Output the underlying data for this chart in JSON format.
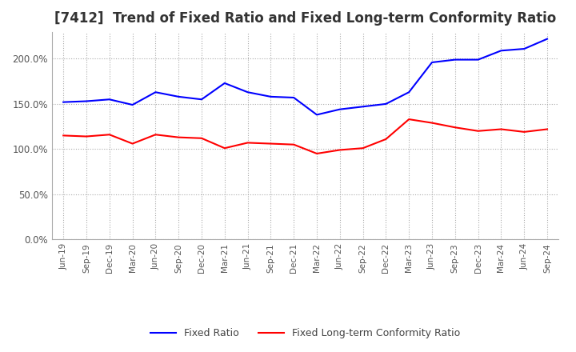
{
  "title": "[7412]  Trend of Fixed Ratio and Fixed Long-term Conformity Ratio",
  "x_labels": [
    "Jun-19",
    "Sep-19",
    "Dec-19",
    "Mar-20",
    "Jun-20",
    "Sep-20",
    "Dec-20",
    "Mar-21",
    "Jun-21",
    "Sep-21",
    "Dec-21",
    "Mar-22",
    "Jun-22",
    "Sep-22",
    "Dec-22",
    "Mar-23",
    "Jun-23",
    "Sep-23",
    "Dec-23",
    "Mar-24",
    "Jun-24",
    "Sep-24"
  ],
  "fixed_ratio": [
    152,
    153,
    155,
    149,
    163,
    158,
    155,
    173,
    163,
    158,
    157,
    138,
    144,
    147,
    150,
    163,
    196,
    199,
    199,
    209,
    211,
    222
  ],
  "fixed_lt_ratio": [
    115,
    114,
    116,
    106,
    116,
    113,
    112,
    101,
    107,
    106,
    105,
    95,
    99,
    101,
    111,
    133,
    129,
    124,
    120,
    122,
    119,
    122
  ],
  "fixed_ratio_color": "#0000FF",
  "fixed_lt_ratio_color": "#FF0000",
  "ylim": [
    0,
    230
  ],
  "yticks": [
    0,
    50,
    100,
    150,
    200
  ],
  "background_color": "#FFFFFF",
  "grid_color": "#AAAAAA",
  "title_fontsize": 12,
  "legend_labels": [
    "Fixed Ratio",
    "Fixed Long-term Conformity Ratio"
  ]
}
